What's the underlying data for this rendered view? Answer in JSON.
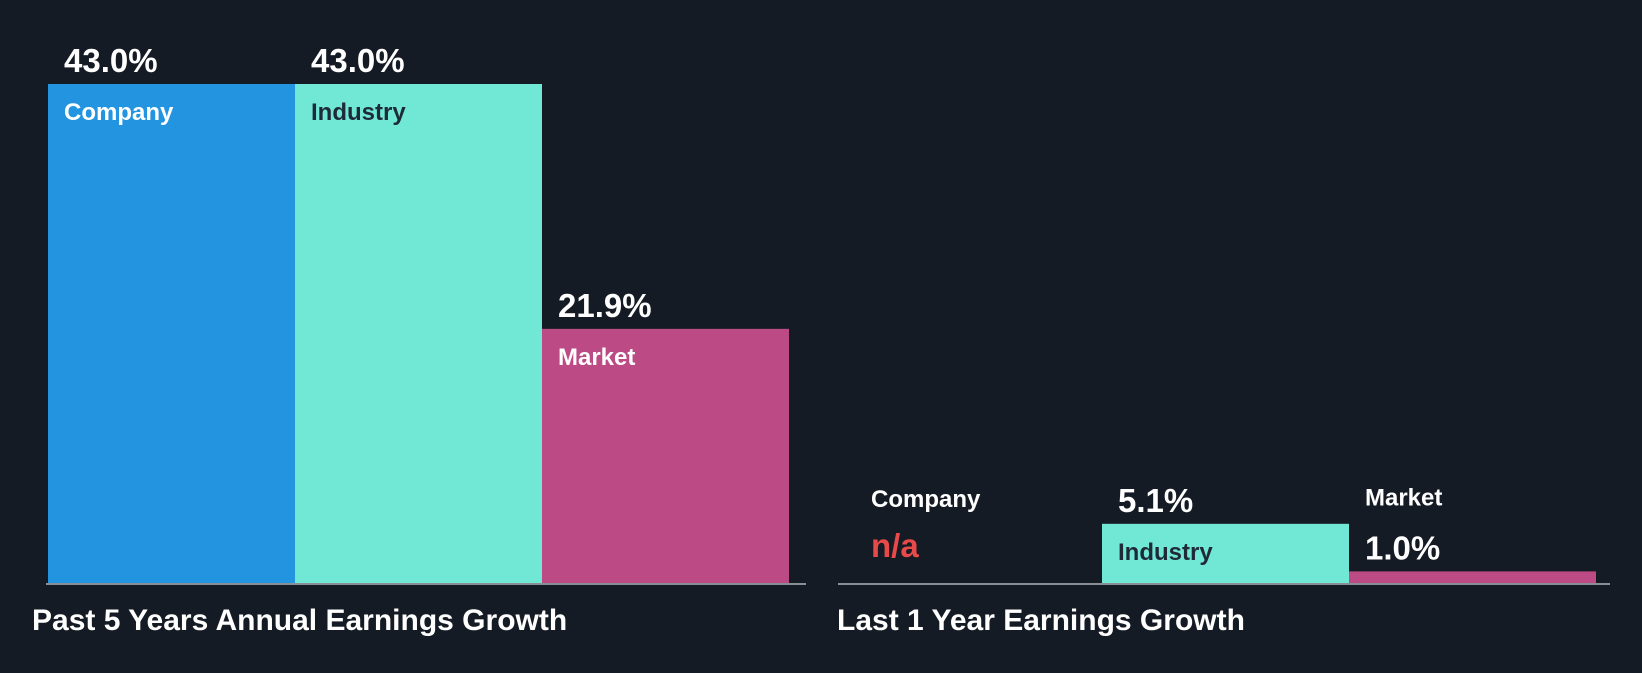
{
  "colors": {
    "background": "#151b24",
    "company": "#2394df",
    "industry": "#71e7d6",
    "market": "#bb4a85",
    "baseline": "#8a8f96",
    "na": "#e84a4a",
    "label_light": "#ffffff",
    "label_dark": "#1f2a37"
  },
  "chart_data": [
    {
      "type": "bar",
      "title": "Past 5 Years Annual Earnings Growth",
      "categories": [
        "Company",
        "Industry",
        "Market"
      ],
      "values": [
        43.0,
        43.0,
        21.9
      ],
      "value_labels": [
        "43.0%",
        "43.0%",
        "21.9%"
      ],
      "unit": "%",
      "ylim": [
        0,
        43.0
      ],
      "grid": false,
      "legend": "none"
    },
    {
      "type": "bar",
      "title": "Last 1 Year Earnings Growth",
      "categories": [
        "Company",
        "Industry",
        "Market"
      ],
      "values": [
        null,
        5.1,
        1.0
      ],
      "value_labels": [
        "n/a",
        "5.1%",
        "1.0%"
      ],
      "unit": "%",
      "ylim": [
        0,
        43.0
      ],
      "grid": false,
      "legend": "none"
    }
  ]
}
